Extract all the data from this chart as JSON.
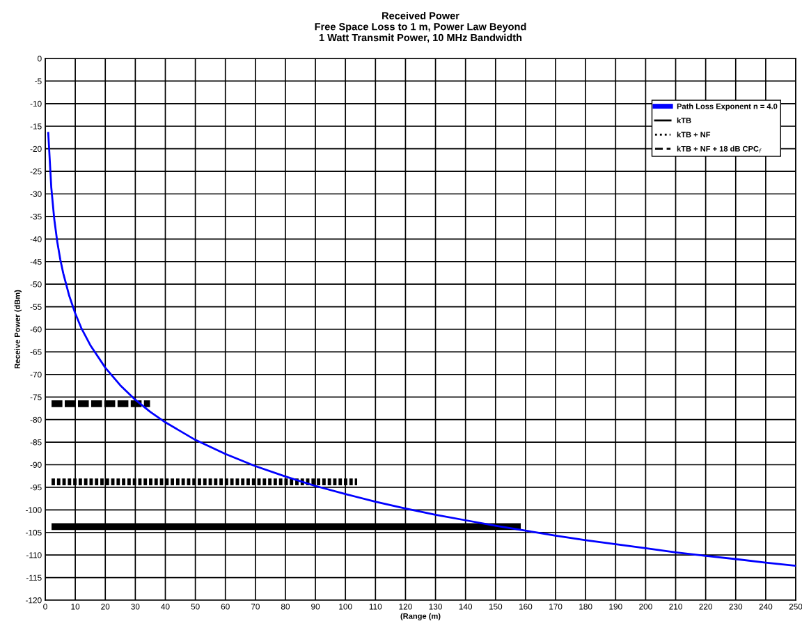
{
  "chart_data": {
    "type": "line",
    "title": "Received Power\nFree Space Loss to 1 m, Power Law Beyond\n1 Watt Transmit Power, 10 MHz Bandwidth",
    "xlabel": "(Range (m)",
    "ylabel": "Receive Power (dBm)",
    "series": [
      {
        "name": "Path Loss Exponent n = 4.0",
        "color": "#0000ff",
        "line_style": "solid",
        "x": [
          1,
          2,
          3,
          4,
          5,
          6,
          8,
          10,
          12,
          15,
          20,
          25,
          30,
          35,
          40,
          50,
          60,
          70,
          80,
          90,
          100,
          110,
          120,
          130,
          140,
          150,
          160,
          170,
          180,
          190,
          200,
          210,
          220,
          230,
          240,
          250
        ],
        "values": [
          -16.5,
          -28.5,
          -35.6,
          -40.6,
          -44.5,
          -47.6,
          -52.6,
          -56.5,
          -59.7,
          -63.5,
          -68.5,
          -72.4,
          -75.6,
          -78.3,
          -80.6,
          -84.5,
          -87.6,
          -90.3,
          -92.6,
          -94.7,
          -96.5,
          -98.2,
          -99.7,
          -101.1,
          -102.3,
          -103.5,
          -104.6,
          -105.7,
          -106.7,
          -107.6,
          -108.5,
          -109.4,
          -110.2,
          -110.9,
          -111.7,
          -112.4
        ]
      },
      {
        "name": "kTB",
        "color": "#000000",
        "line_style": "solid",
        "x": [
          2.1,
          158.4
        ],
        "values": [
          -103.7,
          -103.7
        ]
      },
      {
        "name": "kTB + NF",
        "color": "#000000",
        "line_style": "dotted",
        "x": [
          2.1,
          103.9
        ],
        "values": [
          -93.8,
          -93.8
        ]
      },
      {
        "name": "kTB + NF + 18 dB CPC$_{f}$",
        "color": "#000000",
        "line_style": "dashed",
        "x": [
          2.1,
          34.9
        ],
        "values": [
          -76.5,
          -76.5
        ]
      }
    ],
    "xlim": [
      0,
      250
    ],
    "xticks": [
      0,
      10,
      20,
      30,
      40,
      50,
      60,
      70,
      80,
      90,
      100,
      110,
      120,
      130,
      140,
      150,
      160,
      170,
      180,
      190,
      200,
      210,
      220,
      230,
      240,
      250
    ],
    "ylim": [
      -120,
      0
    ],
    "yticks": [
      -120,
      -115,
      -110,
      -105,
      -100,
      -95,
      -90,
      -85,
      -80,
      -75,
      -70,
      -65,
      -60,
      -55,
      -50,
      -45,
      -40,
      -35,
      -30,
      -25,
      -20,
      -15,
      -10,
      -5,
      0
    ],
    "grid": true,
    "legend": "top right",
    "marker": "none"
  }
}
